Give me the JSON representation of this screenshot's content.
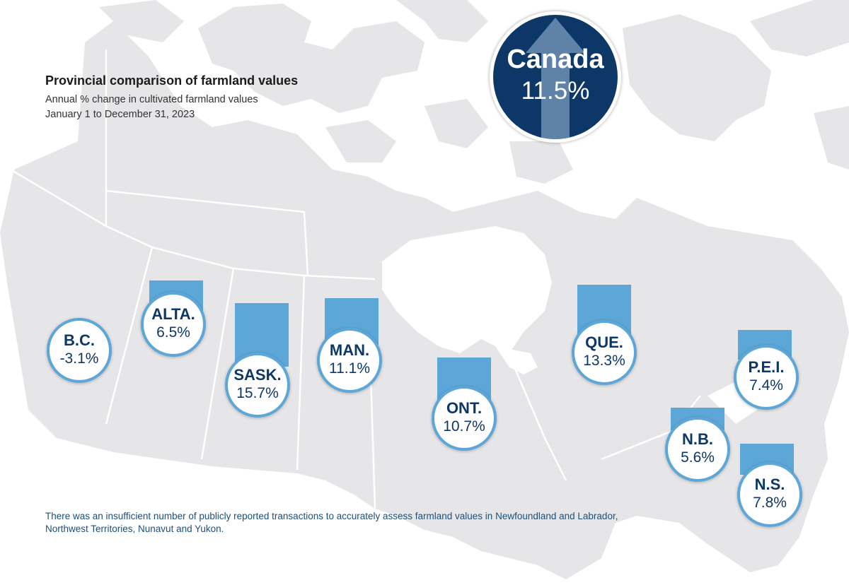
{
  "title": "Provincial comparison of farmland values",
  "subtitle_line1": "Annual % change in cultivated farmland values",
  "subtitle_line2": "January 1 to December 31, 2023",
  "national": {
    "name": "Canada",
    "value": "11.5%",
    "change_pct": 11.5
  },
  "provinces": [
    {
      "abbr": "B.C.",
      "value": "-3.1%",
      "change_pct": -3.1
    },
    {
      "abbr": "ALTA.",
      "value": "6.5%",
      "change_pct": 6.5
    },
    {
      "abbr": "SASK.",
      "value": "15.7%",
      "change_pct": 15.7
    },
    {
      "abbr": "MAN.",
      "value": "11.1%",
      "change_pct": 11.1
    },
    {
      "abbr": "ONT.",
      "value": "10.7%",
      "change_pct": 10.7
    },
    {
      "abbr": "QUE.",
      "value": "13.3%",
      "change_pct": 13.3
    },
    {
      "abbr": "N.B.",
      "value": "5.6%",
      "change_pct": 5.6
    },
    {
      "abbr": "N.S.",
      "value": "7.8%",
      "change_pct": 7.8
    },
    {
      "abbr": "P.E.I.",
      "value": "7.4%",
      "change_pct": 7.4
    }
  ],
  "footnote": "There was an insufficient number of publicly reported transactions to accurately assess farmland values in Newfoundland and Labrador, Northwest Territories, Nunavut and Yukon.",
  "colors": {
    "land": "#e6e6e8",
    "border": "#ffffff",
    "bar": "#5da7d8",
    "badge_text": "#0d3766",
    "national_circle": "#0d3766",
    "footnote_text": "#1d4f7c"
  }
}
